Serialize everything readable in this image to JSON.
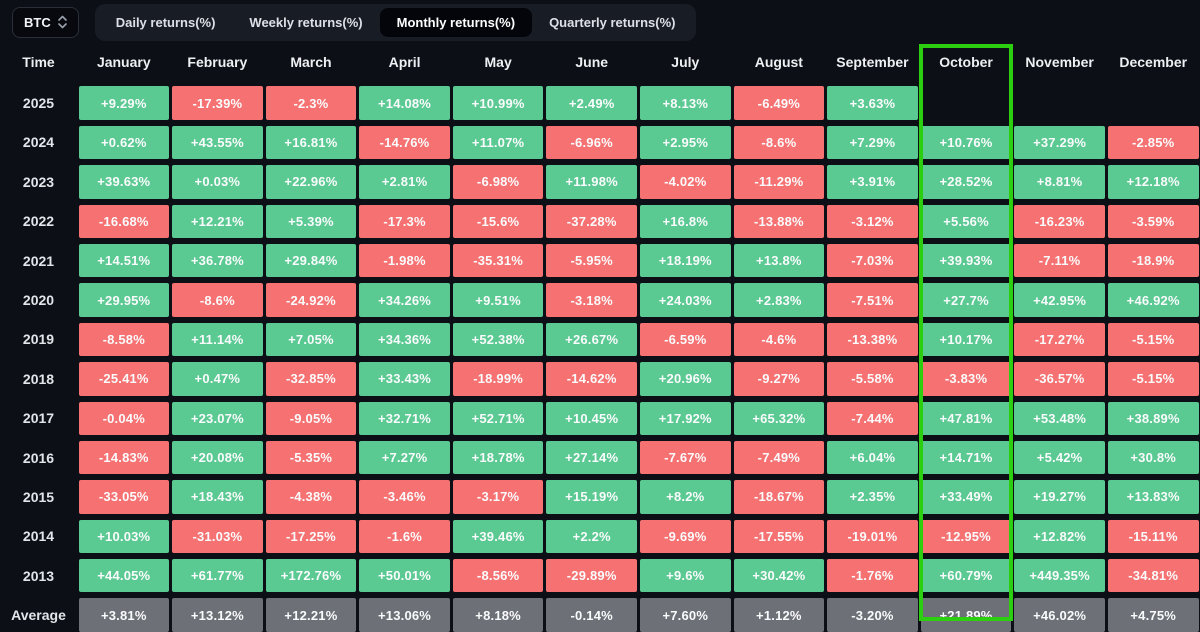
{
  "symbol_selector": {
    "label": "BTC",
    "icon": "sort-vertical-icon"
  },
  "tabs": [
    {
      "label": "Daily returns(%)",
      "active": false
    },
    {
      "label": "Weekly returns(%)",
      "active": false
    },
    {
      "label": "Monthly returns(%)",
      "active": true
    },
    {
      "label": "Quarterly returns(%)",
      "active": false
    }
  ],
  "colors": {
    "positive_cell": "#5ac992",
    "negative_cell": "#f67171",
    "average_cell": "#6d7077",
    "highlight_border": "#2bcf10",
    "active_tab_bg": "#04050a",
    "background": "#0c0f15"
  },
  "table": {
    "time_header": "Time",
    "months": [
      "January",
      "February",
      "March",
      "April",
      "May",
      "June",
      "July",
      "August",
      "September",
      "October",
      "November",
      "December"
    ],
    "highlighted_month": "October",
    "highlighted_month_index": 9,
    "rows": [
      {
        "label": "2025",
        "is_average": false,
        "values": [
          "+9.29%",
          "-17.39%",
          "-2.3%",
          "+14.08%",
          "+10.99%",
          "+2.49%",
          "+8.13%",
          "-6.49%",
          "+3.63%",
          "",
          "",
          ""
        ]
      },
      {
        "label": "2024",
        "is_average": false,
        "values": [
          "+0.62%",
          "+43.55%",
          "+16.81%",
          "-14.76%",
          "+11.07%",
          "-6.96%",
          "+2.95%",
          "-8.6%",
          "+7.29%",
          "+10.76%",
          "+37.29%",
          "-2.85%"
        ]
      },
      {
        "label": "2023",
        "is_average": false,
        "values": [
          "+39.63%",
          "+0.03%",
          "+22.96%",
          "+2.81%",
          "-6.98%",
          "+11.98%",
          "-4.02%",
          "-11.29%",
          "+3.91%",
          "+28.52%",
          "+8.81%",
          "+12.18%"
        ]
      },
      {
        "label": "2022",
        "is_average": false,
        "values": [
          "-16.68%",
          "+12.21%",
          "+5.39%",
          "-17.3%",
          "-15.6%",
          "-37.28%",
          "+16.8%",
          "-13.88%",
          "-3.12%",
          "+5.56%",
          "-16.23%",
          "-3.59%"
        ]
      },
      {
        "label": "2021",
        "is_average": false,
        "values": [
          "+14.51%",
          "+36.78%",
          "+29.84%",
          "-1.98%",
          "-35.31%",
          "-5.95%",
          "+18.19%",
          "+13.8%",
          "-7.03%",
          "+39.93%",
          "-7.11%",
          "-18.9%"
        ]
      },
      {
        "label": "2020",
        "is_average": false,
        "values": [
          "+29.95%",
          "-8.6%",
          "-24.92%",
          "+34.26%",
          "+9.51%",
          "-3.18%",
          "+24.03%",
          "+2.83%",
          "-7.51%",
          "+27.7%",
          "+42.95%",
          "+46.92%"
        ]
      },
      {
        "label": "2019",
        "is_average": false,
        "values": [
          "-8.58%",
          "+11.14%",
          "+7.05%",
          "+34.36%",
          "+52.38%",
          "+26.67%",
          "-6.59%",
          "-4.6%",
          "-13.38%",
          "+10.17%",
          "-17.27%",
          "-5.15%"
        ]
      },
      {
        "label": "2018",
        "is_average": false,
        "values": [
          "-25.41%",
          "+0.47%",
          "-32.85%",
          "+33.43%",
          "-18.99%",
          "-14.62%",
          "+20.96%",
          "-9.27%",
          "-5.58%",
          "-3.83%",
          "-36.57%",
          "-5.15%"
        ]
      },
      {
        "label": "2017",
        "is_average": false,
        "values": [
          "-0.04%",
          "+23.07%",
          "-9.05%",
          "+32.71%",
          "+52.71%",
          "+10.45%",
          "+17.92%",
          "+65.32%",
          "-7.44%",
          "+47.81%",
          "+53.48%",
          "+38.89%"
        ]
      },
      {
        "label": "2016",
        "is_average": false,
        "values": [
          "-14.83%",
          "+20.08%",
          "-5.35%",
          "+7.27%",
          "+18.78%",
          "+27.14%",
          "-7.67%",
          "-7.49%",
          "+6.04%",
          "+14.71%",
          "+5.42%",
          "+30.8%"
        ]
      },
      {
        "label": "2015",
        "is_average": false,
        "values": [
          "-33.05%",
          "+18.43%",
          "-4.38%",
          "-3.46%",
          "-3.17%",
          "+15.19%",
          "+8.2%",
          "-18.67%",
          "+2.35%",
          "+33.49%",
          "+19.27%",
          "+13.83%"
        ]
      },
      {
        "label": "2014",
        "is_average": false,
        "values": [
          "+10.03%",
          "-31.03%",
          "-17.25%",
          "-1.6%",
          "+39.46%",
          "+2.2%",
          "-9.69%",
          "-17.55%",
          "-19.01%",
          "-12.95%",
          "+12.82%",
          "-15.11%"
        ]
      },
      {
        "label": "2013",
        "is_average": false,
        "values": [
          "+44.05%",
          "+61.77%",
          "+172.76%",
          "+50.01%",
          "-8.56%",
          "-29.89%",
          "+9.6%",
          "+30.42%",
          "-1.76%",
          "+60.79%",
          "+449.35%",
          "-34.81%"
        ]
      },
      {
        "label": "Average",
        "is_average": true,
        "values": [
          "+3.81%",
          "+13.12%",
          "+12.21%",
          "+13.06%",
          "+8.18%",
          "-0.14%",
          "+7.60%",
          "+1.12%",
          "-3.20%",
          "+21.89%",
          "+46.02%",
          "+4.75%"
        ]
      }
    ]
  }
}
